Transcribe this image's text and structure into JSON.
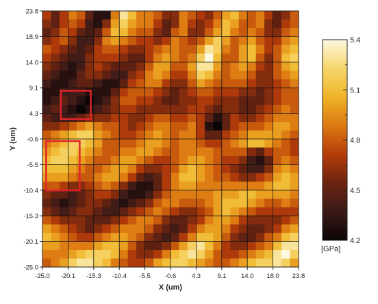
{
  "chart_data": {
    "type": "heatmap",
    "title": "",
    "xlabel": "X (um)",
    "ylabel": "Y (um)",
    "x_ticks": [
      "-25.0",
      "-20.1",
      "-15.3",
      "-10.4",
      "-5.5",
      "-0.6",
      "4.3",
      "9.1",
      "14.0",
      "18.0",
      "23.8"
    ],
    "y_ticks": [
      "23.8",
      "18.9",
      "14.0",
      "9.1",
      "4.3",
      "-0.6",
      "-5.5",
      "-10.4",
      "-15.3",
      "-20.1",
      "-25.0"
    ],
    "xlim": [
      -25.0,
      23.8
    ],
    "ylim": [
      -25.0,
      23.8
    ],
    "grid": true,
    "colorbar": {
      "unit_label": "[GPa]",
      "ticks": [
        "5.4",
        "5.1",
        "4.8",
        "4.5",
        "4.2"
      ],
      "range": [
        4.2,
        5.4
      ],
      "colors": [
        "#0a0505",
        "#3a1a18",
        "#6b2410",
        "#b43c0a",
        "#dc7812",
        "#f0b428",
        "#f6d66a",
        "#fdf8e0"
      ]
    },
    "highlight_boxes": [
      {
        "color": "#e0242c",
        "x_range": [
          -21.5,
          -15.8
        ],
        "y_range": [
          3.2,
          8.6
        ]
      },
      {
        "color": "#e0242c",
        "x_range": [
          -24.3,
          -17.9
        ],
        "y_range": [
          -10.4,
          -1.0
        ]
      }
    ],
    "grid_size": 30,
    "values": [
      [
        4.7,
        4.5,
        4.7,
        4.9,
        4.8,
        4.5,
        4.3,
        4.3,
        4.9,
        5.3,
        5.1,
        4.9,
        4.9,
        4.8,
        4.6,
        4.6,
        4.9,
        4.8,
        4.7,
        4.6,
        4.8,
        5.0,
        5.1,
        4.9,
        4.8,
        4.9,
        4.7,
        4.5,
        4.6,
        4.8
      ],
      [
        4.6,
        4.5,
        4.7,
        4.8,
        4.7,
        4.4,
        4.3,
        4.6,
        5.0,
        5.2,
        5.0,
        4.9,
        4.9,
        4.7,
        4.5,
        4.6,
        4.9,
        4.7,
        4.6,
        4.7,
        4.9,
        5.1,
        5.0,
        4.8,
        4.8,
        4.9,
        4.6,
        4.5,
        4.7,
        4.8
      ],
      [
        4.5,
        4.6,
        4.8,
        4.7,
        4.5,
        4.4,
        4.5,
        4.8,
        5.1,
        5.1,
        4.9,
        4.8,
        4.8,
        4.6,
        4.5,
        4.8,
        4.9,
        4.6,
        4.6,
        4.8,
        5.0,
        5.1,
        4.9,
        4.8,
        4.9,
        4.8,
        4.6,
        4.6,
        4.8,
        4.9
      ],
      [
        4.6,
        4.7,
        4.8,
        4.6,
        4.4,
        4.4,
        4.6,
        4.9,
        5.0,
        4.9,
        4.8,
        4.7,
        4.7,
        4.6,
        4.7,
        4.9,
        4.8,
        4.7,
        4.8,
        5.0,
        5.2,
        5.0,
        4.8,
        4.9,
        5.0,
        4.8,
        4.7,
        4.7,
        4.9,
        5.0
      ],
      [
        4.8,
        4.7,
        4.6,
        4.5,
        4.4,
        4.5,
        4.7,
        4.8,
        4.8,
        4.7,
        4.6,
        4.6,
        4.7,
        4.8,
        4.9,
        4.9,
        4.8,
        4.8,
        5.0,
        5.3,
        5.2,
        4.9,
        4.8,
        5.0,
        5.1,
        4.9,
        4.7,
        4.8,
        5.0,
        5.1
      ],
      [
        4.7,
        4.6,
        4.5,
        4.4,
        4.4,
        4.6,
        4.7,
        4.7,
        4.7,
        4.6,
        4.5,
        4.5,
        4.7,
        4.9,
        5.0,
        4.9,
        4.8,
        4.9,
        5.2,
        5.4,
        5.1,
        4.8,
        4.8,
        5.0,
        5.1,
        4.8,
        4.6,
        4.8,
        5.1,
        5.2
      ],
      [
        4.6,
        4.5,
        4.4,
        4.3,
        4.4,
        4.6,
        4.7,
        4.6,
        4.5,
        4.5,
        4.5,
        4.6,
        4.8,
        5.0,
        5.0,
        4.8,
        4.8,
        5.0,
        5.3,
        5.3,
        5.0,
        4.8,
        4.9,
        5.0,
        4.9,
        4.7,
        4.6,
        4.8,
        5.0,
        5.1
      ],
      [
        4.5,
        4.4,
        4.3,
        4.3,
        4.5,
        4.6,
        4.6,
        4.5,
        4.4,
        4.4,
        4.6,
        4.7,
        4.9,
        5.0,
        4.9,
        4.7,
        4.7,
        4.9,
        5.2,
        5.1,
        4.9,
        4.8,
        4.9,
        4.9,
        4.8,
        4.6,
        4.6,
        4.8,
        4.9,
        5.0
      ],
      [
        4.4,
        4.3,
        4.3,
        4.4,
        4.5,
        4.5,
        4.4,
        4.3,
        4.3,
        4.5,
        4.7,
        4.8,
        4.9,
        4.9,
        4.7,
        4.6,
        4.6,
        4.8,
        5.0,
        4.9,
        4.8,
        4.8,
        4.8,
        4.8,
        4.7,
        4.6,
        4.6,
        4.7,
        4.8,
        4.9
      ],
      [
        4.3,
        4.3,
        4.4,
        4.4,
        4.4,
        4.3,
        4.3,
        4.3,
        4.5,
        4.7,
        4.8,
        4.8,
        4.8,
        4.7,
        4.6,
        4.5,
        4.6,
        4.7,
        4.8,
        4.8,
        4.7,
        4.7,
        4.7,
        4.6,
        4.6,
        4.5,
        4.6,
        4.7,
        4.8,
        4.8
      ],
      [
        4.3,
        4.4,
        4.5,
        4.4,
        4.3,
        4.2,
        4.3,
        4.4,
        4.6,
        4.8,
        4.8,
        4.7,
        4.7,
        4.6,
        4.5,
        4.5,
        4.6,
        4.6,
        4.7,
        4.7,
        4.6,
        4.6,
        4.6,
        4.5,
        4.5,
        4.5,
        4.6,
        4.7,
        4.8,
        4.8
      ],
      [
        4.4,
        4.5,
        4.4,
        4.3,
        4.2,
        4.3,
        4.4,
        4.5,
        4.6,
        4.7,
        4.7,
        4.6,
        4.6,
        4.6,
        4.6,
        4.6,
        4.6,
        4.7,
        4.7,
        4.6,
        4.5,
        4.6,
        4.6,
        4.5,
        4.5,
        4.6,
        4.7,
        4.8,
        4.9,
        4.8
      ],
      [
        4.5,
        4.4,
        4.4,
        4.4,
        4.5,
        4.6,
        4.6,
        4.6,
        4.7,
        4.7,
        4.6,
        4.6,
        4.7,
        4.8,
        4.8,
        4.7,
        4.7,
        4.8,
        4.7,
        4.5,
        4.3,
        4.5,
        4.7,
        4.6,
        4.6,
        4.7,
        4.8,
        4.9,
        4.9,
        4.9
      ],
      [
        4.6,
        4.6,
        4.7,
        4.8,
        4.9,
        5.0,
        4.9,
        4.8,
        4.8,
        4.7,
        4.6,
        4.7,
        4.8,
        4.9,
        4.9,
        4.8,
        4.8,
        4.9,
        4.7,
        4.3,
        4.2,
        4.5,
        4.7,
        4.8,
        4.8,
        4.8,
        4.9,
        5.0,
        5.0,
        4.9
      ],
      [
        4.8,
        4.9,
        5.0,
        5.1,
        5.2,
        5.2,
        5.0,
        4.9,
        4.8,
        4.7,
        4.7,
        4.8,
        4.9,
        5.0,
        4.9,
        4.8,
        4.9,
        4.9,
        4.7,
        4.5,
        4.5,
        4.7,
        4.8,
        4.9,
        5.0,
        5.0,
        5.0,
        5.0,
        4.9,
        4.8
      ],
      [
        4.9,
        5.0,
        5.1,
        5.2,
        5.2,
        5.1,
        5.0,
        4.8,
        4.8,
        4.8,
        4.8,
        4.9,
        5.0,
        5.0,
        4.9,
        4.8,
        4.9,
        4.9,
        4.8,
        4.7,
        4.7,
        4.8,
        4.9,
        5.0,
        5.1,
        5.1,
        5.0,
        4.9,
        4.8,
        4.7
      ],
      [
        5.0,
        5.1,
        5.2,
        5.2,
        5.1,
        5.0,
        4.9,
        4.8,
        4.8,
        4.9,
        4.9,
        5.0,
        5.0,
        4.9,
        4.8,
        4.8,
        4.9,
        4.9,
        4.9,
        4.9,
        4.8,
        4.8,
        4.8,
        4.8,
        4.6,
        4.5,
        4.7,
        4.8,
        4.8,
        4.7
      ],
      [
        5.1,
        5.2,
        5.2,
        5.1,
        5.0,
        4.9,
        4.8,
        4.8,
        4.9,
        5.0,
        5.0,
        4.9,
        4.8,
        4.7,
        4.7,
        4.8,
        4.9,
        5.0,
        5.0,
        4.9,
        4.8,
        4.7,
        4.7,
        4.6,
        4.4,
        4.3,
        4.5,
        4.8,
        4.9,
        4.8
      ],
      [
        5.1,
        5.1,
        5.1,
        5.0,
        4.9,
        4.8,
        4.8,
        4.9,
        5.0,
        5.0,
        4.9,
        4.7,
        4.6,
        4.6,
        4.7,
        4.8,
        5.0,
        5.1,
        5.0,
        4.9,
        4.8,
        4.7,
        4.6,
        4.5,
        4.4,
        4.4,
        4.6,
        4.9,
        5.0,
        4.9
      ],
      [
        5.0,
        5.0,
        5.0,
        4.9,
        4.8,
        4.8,
        4.9,
        5.0,
        5.0,
        4.9,
        4.7,
        4.5,
        4.4,
        4.5,
        4.7,
        4.9,
        5.1,
        5.1,
        5.0,
        4.9,
        4.8,
        4.8,
        4.7,
        4.6,
        4.6,
        4.7,
        4.8,
        5.0,
        5.1,
        5.0
      ],
      [
        4.8,
        4.8,
        4.7,
        4.6,
        4.6,
        4.7,
        4.8,
        4.9,
        4.8,
        4.6,
        4.4,
        4.3,
        4.3,
        4.5,
        4.7,
        4.9,
        5.0,
        5.0,
        4.9,
        4.9,
        4.9,
        4.9,
        4.9,
        4.9,
        4.9,
        4.9,
        5.0,
        5.1,
        5.1,
        5.0
      ],
      [
        4.6,
        4.5,
        4.5,
        4.4,
        4.5,
        4.6,
        4.7,
        4.7,
        4.6,
        4.4,
        4.3,
        4.3,
        4.4,
        4.6,
        4.8,
        4.9,
        4.9,
        4.9,
        4.9,
        4.9,
        5.0,
        5.0,
        5.0,
        5.1,
        5.1,
        5.0,
        5.0,
        5.0,
        5.0,
        4.9
      ],
      [
        4.5,
        4.4,
        4.3,
        4.4,
        4.5,
        4.6,
        4.6,
        4.5,
        4.4,
        4.3,
        4.4,
        4.5,
        4.6,
        4.8,
        4.9,
        4.9,
        4.8,
        4.8,
        4.8,
        4.9,
        5.0,
        5.1,
        5.1,
        5.1,
        5.0,
        4.9,
        4.8,
        4.8,
        4.9,
        4.8
      ],
      [
        4.6,
        4.5,
        4.4,
        4.5,
        4.6,
        4.6,
        4.5,
        4.4,
        4.4,
        4.5,
        4.6,
        4.7,
        4.8,
        4.9,
        4.8,
        4.7,
        4.6,
        4.6,
        4.7,
        4.8,
        5.0,
        5.1,
        5.0,
        4.9,
        4.8,
        4.7,
        4.7,
        4.7,
        4.7,
        4.7
      ],
      [
        4.8,
        4.7,
        4.6,
        4.6,
        4.6,
        4.5,
        4.5,
        4.5,
        4.6,
        4.7,
        4.8,
        4.9,
        4.9,
        4.8,
        4.6,
        4.5,
        4.5,
        4.6,
        4.7,
        4.9,
        5.0,
        5.0,
        4.9,
        4.7,
        4.6,
        4.6,
        4.6,
        4.6,
        4.7,
        4.8
      ],
      [
        5.0,
        4.9,
        4.8,
        4.7,
        4.6,
        4.5,
        4.6,
        4.7,
        4.8,
        4.9,
        4.9,
        4.9,
        4.8,
        4.6,
        4.5,
        4.4,
        4.5,
        4.7,
        4.9,
        5.0,
        5.0,
        4.9,
        4.7,
        4.6,
        4.5,
        4.5,
        4.6,
        4.7,
        4.9,
        5.0
      ],
      [
        5.1,
        5.0,
        4.9,
        4.8,
        4.7,
        4.7,
        4.8,
        4.9,
        5.0,
        5.0,
        4.9,
        4.8,
        4.6,
        4.5,
        4.4,
        4.5,
        4.7,
        4.9,
        5.1,
        5.1,
        5.0,
        4.8,
        4.6,
        4.5,
        4.5,
        4.6,
        4.8,
        4.9,
        5.1,
        5.2
      ],
      [
        5.0,
        5.0,
        4.9,
        4.9,
        4.9,
        4.9,
        5.0,
        5.1,
        5.1,
        5.0,
        4.8,
        4.6,
        4.5,
        4.5,
        4.6,
        4.8,
        5.0,
        5.2,
        5.3,
        5.1,
        4.9,
        4.7,
        4.6,
        4.6,
        4.7,
        4.8,
        4.9,
        5.1,
        5.3,
        5.3
      ],
      [
        4.9,
        4.9,
        4.9,
        5.0,
        5.1,
        5.2,
        5.2,
        5.2,
        5.1,
        4.9,
        4.7,
        4.6,
        4.6,
        4.7,
        4.9,
        5.1,
        5.2,
        5.3,
        5.2,
        5.0,
        4.8,
        4.7,
        4.7,
        4.8,
        4.9,
        5.0,
        5.1,
        5.3,
        5.4,
        5.2
      ],
      [
        4.8,
        4.9,
        5.0,
        5.2,
        5.3,
        5.3,
        5.2,
        5.1,
        4.9,
        4.8,
        4.7,
        4.7,
        4.8,
        5.0,
        5.1,
        5.2,
        5.2,
        5.1,
        5.0,
        4.9,
        4.8,
        4.8,
        4.9,
        5.0,
        5.1,
        5.2,
        5.2,
        5.3,
        5.2,
        5.0
      ]
    ]
  }
}
